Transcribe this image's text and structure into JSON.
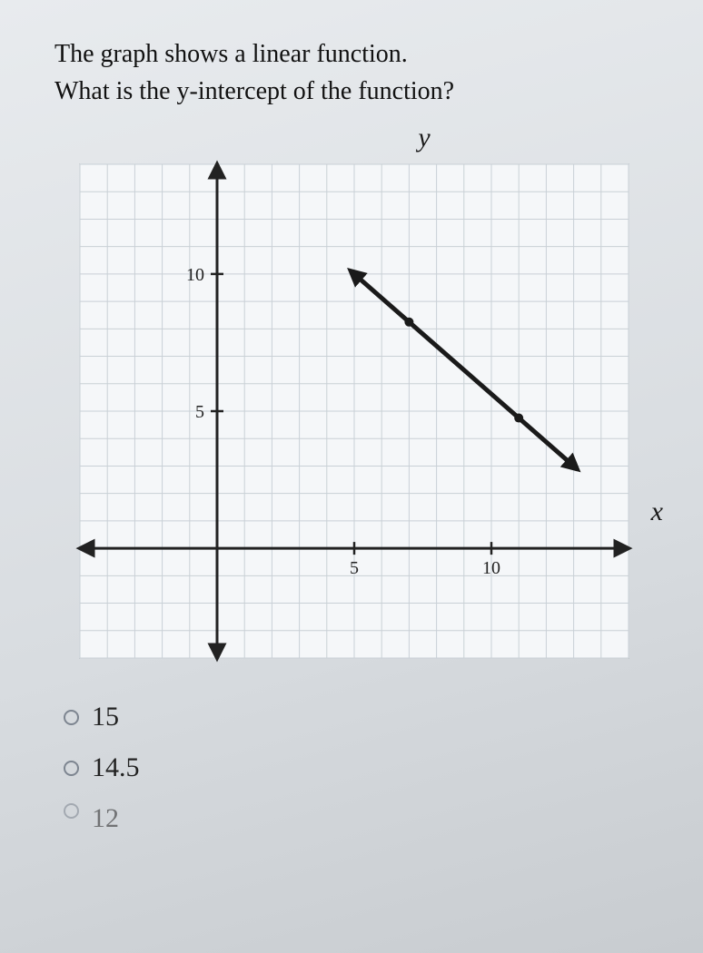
{
  "question": {
    "line1": "The graph shows a linear function.",
    "line2": "What is the y-intercept of the function?"
  },
  "chart": {
    "type": "line",
    "y_label": "y",
    "x_label": "x",
    "xlim": [
      -5,
      15
    ],
    "ylim": [
      -4,
      14
    ],
    "x_ticks": [
      5,
      10
    ],
    "y_ticks": [
      5,
      10
    ],
    "grid_color": "#c9d0d6",
    "axis_color": "#222222",
    "background_color": "#f5f7f9",
    "line_color": "#1a1a1a",
    "line_width": 5,
    "marker_style": "circle",
    "marker_size": 5,
    "tick_fontsize": 20,
    "segment": {
      "start": [
        5,
        10
      ],
      "end": [
        13,
        3
      ]
    },
    "points": [
      [
        7,
        8.25
      ],
      [
        11,
        4.75
      ]
    ],
    "arrowheads": true
  },
  "choices": [
    {
      "label": "15"
    },
    {
      "label": "14.5"
    },
    {
      "label_partial": "12"
    }
  ]
}
